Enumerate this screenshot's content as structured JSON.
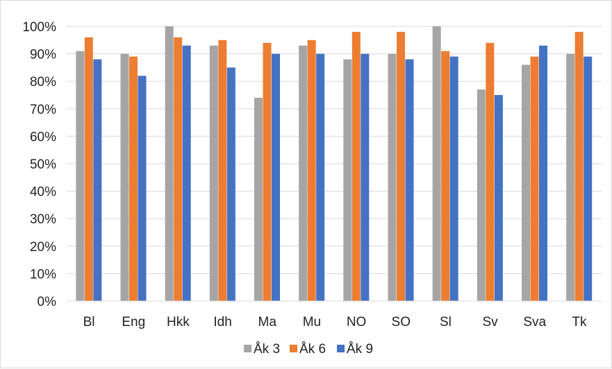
{
  "chart_data": {
    "type": "bar",
    "title": "",
    "xlabel": "",
    "ylabel": "",
    "categories": [
      "Bl",
      "Eng",
      "Hkk",
      "Idh",
      "Ma",
      "Mu",
      "NO",
      "SO",
      "Sl",
      "Sv",
      "Sva",
      "Tk"
    ],
    "y_ticks": [
      "0%",
      "10%",
      "20%",
      "30%",
      "40%",
      "50%",
      "60%",
      "70%",
      "80%",
      "90%",
      "100%"
    ],
    "ylim": [
      0,
      100
    ],
    "grid": true,
    "legend_position": "bottom",
    "series": [
      {
        "name": "Åk 3",
        "color": "#a5a5a5",
        "values": [
          91,
          90,
          100,
          93,
          74,
          93,
          88,
          90,
          100,
          77,
          86,
          90
        ]
      },
      {
        "name": "Åk 6",
        "color": "#ed7d31",
        "values": [
          96,
          89,
          96,
          95,
          94,
          95,
          98,
          98,
          91,
          94,
          89,
          98
        ]
      },
      {
        "name": "Åk 9",
        "color": "#4472c4",
        "values": [
          88,
          82,
          93,
          85,
          90,
          90,
          90,
          88,
          89,
          75,
          93,
          89
        ]
      }
    ]
  }
}
